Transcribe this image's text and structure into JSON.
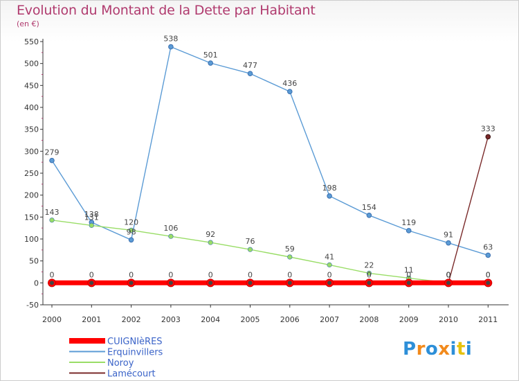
{
  "title": "Evolution du Montant de la Dette par Habitant",
  "subtitle": "(en €)",
  "logo": {
    "text": "Proxiti",
    "colors": [
      "#2d8fd8",
      "#f28a1c",
      "#2d8fd8",
      "#f28a1c",
      "#2d8fd8",
      "#e6c20e",
      "#2d8fd8"
    ]
  },
  "chart_data": {
    "type": "line",
    "categories": [
      "2000",
      "2001",
      "2002",
      "2003",
      "2004",
      "2005",
      "2006",
      "2007",
      "2008",
      "2009",
      "2010",
      "2011"
    ],
    "ylim": [
      -50,
      550
    ],
    "yticks": [
      "-50",
      "0",
      "50",
      "100",
      "150",
      "200",
      "250",
      "300",
      "350",
      "400",
      "450",
      "500",
      "550"
    ],
    "grid": false,
    "legend_position": "bottom-left",
    "series": [
      {
        "name": "CUIGNIèRES",
        "color": "#ff0000",
        "values": [
          0,
          0,
          0,
          0,
          0,
          0,
          0,
          0,
          0,
          0,
          0,
          0
        ],
        "labels": [
          "0",
          "0",
          "0",
          "0",
          "0",
          "0",
          "0",
          "0",
          "0",
          "0",
          "0",
          "0"
        ]
      },
      {
        "name": "Erquinvillers",
        "color": "#5b9bd5",
        "values": [
          279,
          138,
          98,
          538,
          501,
          477,
          436,
          198,
          154,
          119,
          91,
          63
        ],
        "labels": [
          "279",
          "138",
          "98",
          "538",
          "501",
          "477",
          "436",
          "198",
          "154",
          "119",
          "91",
          "63"
        ]
      },
      {
        "name": "Noroy",
        "color": "#99dd66",
        "values": [
          143,
          131,
          120,
          106,
          92,
          76,
          59,
          41,
          22,
          11,
          0,
          0
        ],
        "labels": [
          "143",
          "131",
          "120",
          "106",
          "92",
          "76",
          "59",
          "41",
          "22",
          "11",
          "0",
          "0"
        ]
      },
      {
        "name": "Lamécourt",
        "color": "#7a2a2a",
        "values": [
          null,
          null,
          null,
          null,
          null,
          null,
          null,
          null,
          null,
          null,
          0,
          333
        ],
        "labels": [
          null,
          null,
          null,
          null,
          null,
          null,
          null,
          null,
          null,
          null,
          "0",
          "333"
        ]
      }
    ]
  }
}
